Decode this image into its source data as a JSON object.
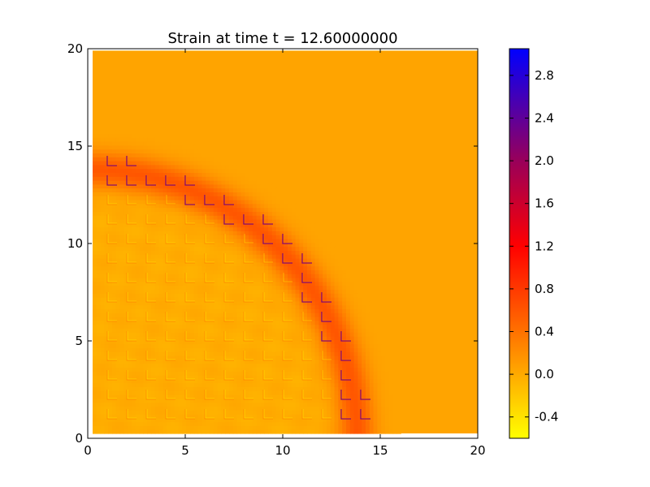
{
  "chart_data": {
    "type": "heatmap",
    "title": "Strain at time t =    12.60000000",
    "xlim": [
      0,
      20
    ],
    "ylim": [
      0,
      20
    ],
    "x_ticks": [
      "0",
      "5",
      "10",
      "15",
      "20"
    ],
    "y_ticks": [
      "0",
      "5",
      "10",
      "15",
      "20"
    ],
    "xlabel": "",
    "ylabel": "",
    "colorbar": {
      "range": [
        -0.6,
        3.05
      ],
      "tick_labels": [
        "-0.4",
        "0.0",
        "0.4",
        "0.8",
        "1.2",
        "1.6",
        "2.0",
        "2.4",
        "2.8"
      ],
      "tick_values": [
        -0.4,
        0.0,
        0.4,
        0.8,
        1.2,
        1.6,
        2.0,
        2.4,
        2.8
      ],
      "colormap": [
        {
          "value": -0.6,
          "color": "#ffff00"
        },
        {
          "value": 0.0,
          "color": "#ffaa00"
        },
        {
          "value": 0.6,
          "color": "#ff5500"
        },
        {
          "value": 1.2,
          "color": "#ff0000"
        },
        {
          "value": 2.0,
          "color": "#99005a"
        },
        {
          "value": 3.05,
          "color": "#0000ff"
        }
      ]
    },
    "field": {
      "background_strain": 0.04,
      "background_color": "#ffaa00",
      "front_center": [
        0,
        0
      ],
      "front_radius": 13.8,
      "front_width": 0.9,
      "front_strain": 0.55,
      "interior_strain": -0.1,
      "grid_spacing": 1,
      "data_extent": {
        "x": [
          0.25,
          20
        ],
        "y": [
          0.25,
          19.9
        ]
      }
    }
  }
}
